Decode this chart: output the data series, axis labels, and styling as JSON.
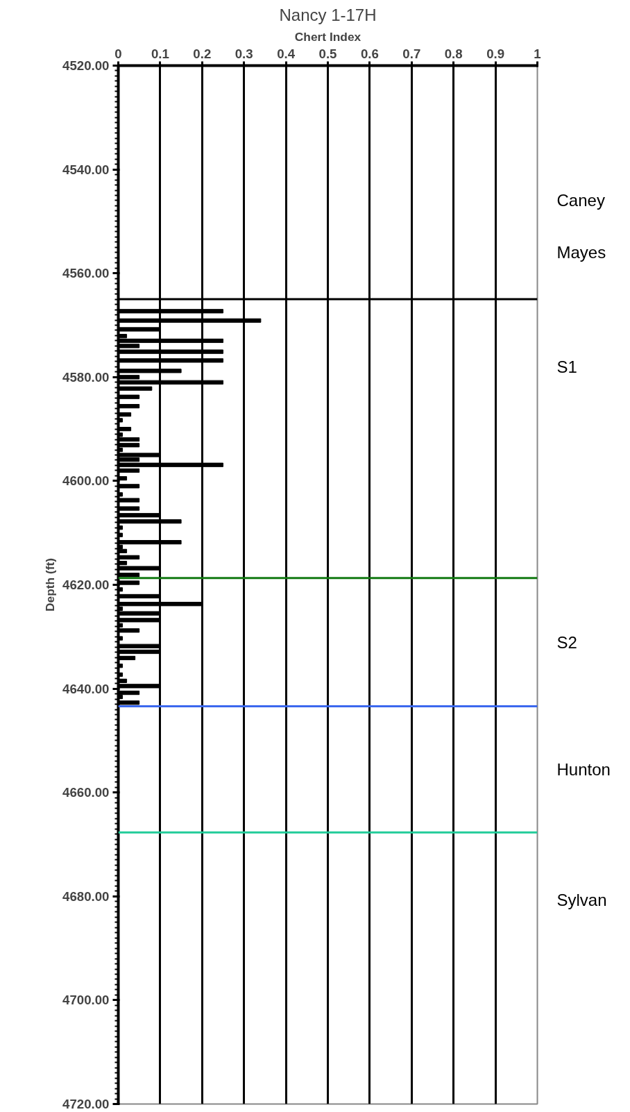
{
  "chart_data": {
    "type": "bar",
    "orientation": "horizontal",
    "title": "Nancy 1-17H",
    "xlabel": "Chert Index",
    "ylabel": "Depth (ft)",
    "x": [
      4567.3,
      4569.1,
      4570.8,
      4572.1,
      4573.0,
      4574.0,
      4575.1,
      4576.8,
      4578.8,
      4580.0,
      4581.0,
      4582.2,
      4583.8,
      4585.6,
      4587.2,
      4588.3,
      4590.0,
      4591.1,
      4592.0,
      4593.1,
      4594.0,
      4595.0,
      4595.9,
      4596.9,
      4598.0,
      4599.5,
      4601.0,
      4602.6,
      4603.7,
      4605.3,
      4606.6,
      4607.8,
      4609.0,
      4610.4,
      4611.8,
      4612.7,
      4613.5,
      4614.7,
      4615.8,
      4616.8,
      4618.1,
      4619.6,
      4620.9,
      4622.2,
      4623.7,
      4624.6,
      4625.5,
      4626.8,
      4627.8,
      4628.8,
      4630.3,
      4631.8,
      4632.9,
      4634.1,
      4635.6,
      4637.3,
      4638.5,
      4639.5,
      4640.8,
      4641.6,
      4642.7
    ],
    "values": [
      0.25,
      0.34,
      0.1,
      0.02,
      0.25,
      0.05,
      0.25,
      0.25,
      0.15,
      0.05,
      0.25,
      0.08,
      0.05,
      0.05,
      0.03,
      0.01,
      0.03,
      0.01,
      0.05,
      0.05,
      0.01,
      0.1,
      0.05,
      0.25,
      0.05,
      0.02,
      0.05,
      0.01,
      0.05,
      0.05,
      0.1,
      0.15,
      0.01,
      0.01,
      0.15,
      0.01,
      0.02,
      0.05,
      0.02,
      0.1,
      0.05,
      0.05,
      0.01,
      0.1,
      0.2,
      0.01,
      0.1,
      0.1,
      0.01,
      0.05,
      0.01,
      0.1,
      0.1,
      0.04,
      0.01,
      0.01,
      0.02,
      0.1,
      0.05,
      0.01,
      0.05
    ],
    "color": "#000000",
    "xlim": [
      0,
      1
    ],
    "xticks": [
      0,
      0.1,
      0.2,
      0.3,
      0.4,
      0.5,
      0.6,
      0.7,
      0.8,
      0.9,
      1
    ],
    "ylim": [
      4720,
      4520
    ],
    "yticks": [
      {
        "value": 4520,
        "label": "4520.00"
      },
      {
        "value": 4540,
        "label": "4540.00"
      },
      {
        "value": 4560,
        "label": "4560.00"
      },
      {
        "value": 4580,
        "label": "4580.00"
      },
      {
        "value": 4600,
        "label": "4600.00"
      },
      {
        "value": 4620,
        "label": "4620.00"
      },
      {
        "value": 4640,
        "label": "4640.00"
      },
      {
        "value": 4660,
        "label": "4660.00"
      },
      {
        "value": 4680,
        "label": "4680.00"
      },
      {
        "value": 4700,
        "label": "4700.00"
      },
      {
        "value": 4720,
        "label": "4720.00"
      }
    ],
    "grid": "x",
    "ref_lines": [
      {
        "axis": "y",
        "value": 4565,
        "color": "#000000"
      },
      {
        "axis": "y",
        "value": 4618.7,
        "color": "#137a13"
      },
      {
        "axis": "y",
        "value": 4643.4,
        "color": "#3b68ee"
      },
      {
        "axis": "y",
        "value": 4667.7,
        "color": "#22cc99"
      }
    ],
    "annotations": [
      "Caney",
      "Mayes",
      "S1",
      "S2",
      "Hunton",
      "Sylvan"
    ]
  }
}
